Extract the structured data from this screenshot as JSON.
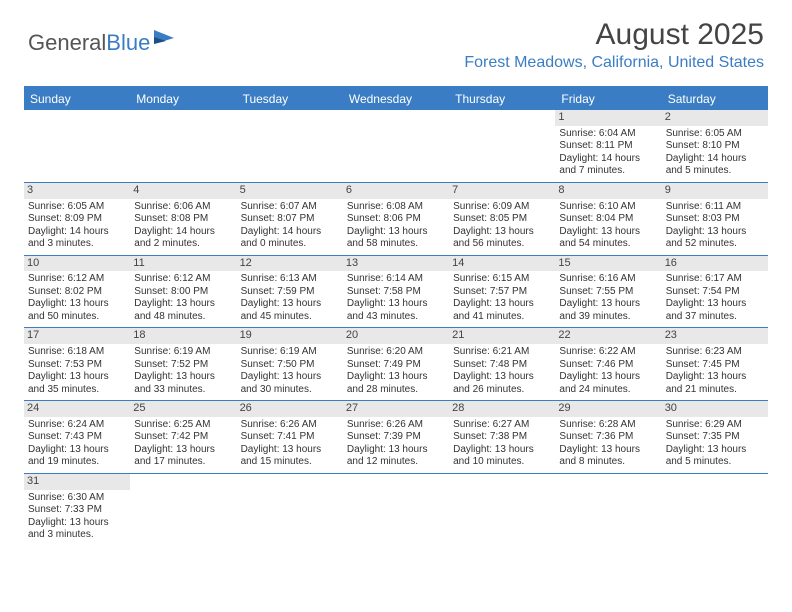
{
  "logo": {
    "text1": "General",
    "text2": "Blue"
  },
  "title": "August 2025",
  "location": "Forest Meadows, California, United States",
  "colors": {
    "accent": "#3b7dc4",
    "headerRow": "#e8e8e8"
  },
  "dayNames": [
    "Sunday",
    "Monday",
    "Tuesday",
    "Wednesday",
    "Thursday",
    "Friday",
    "Saturday"
  ],
  "weeks": [
    [
      {
        "empty": true
      },
      {
        "empty": true
      },
      {
        "empty": true
      },
      {
        "empty": true
      },
      {
        "empty": true
      },
      {
        "date": "1",
        "sunrise": "Sunrise: 6:04 AM",
        "sunset": "Sunset: 8:11 PM",
        "daylight": "Daylight: 14 hours and 7 minutes."
      },
      {
        "date": "2",
        "sunrise": "Sunrise: 6:05 AM",
        "sunset": "Sunset: 8:10 PM",
        "daylight": "Daylight: 14 hours and 5 minutes."
      }
    ],
    [
      {
        "date": "3",
        "sunrise": "Sunrise: 6:05 AM",
        "sunset": "Sunset: 8:09 PM",
        "daylight": "Daylight: 14 hours and 3 minutes."
      },
      {
        "date": "4",
        "sunrise": "Sunrise: 6:06 AM",
        "sunset": "Sunset: 8:08 PM",
        "daylight": "Daylight: 14 hours and 2 minutes."
      },
      {
        "date": "5",
        "sunrise": "Sunrise: 6:07 AM",
        "sunset": "Sunset: 8:07 PM",
        "daylight": "Daylight: 14 hours and 0 minutes."
      },
      {
        "date": "6",
        "sunrise": "Sunrise: 6:08 AM",
        "sunset": "Sunset: 8:06 PM",
        "daylight": "Daylight: 13 hours and 58 minutes."
      },
      {
        "date": "7",
        "sunrise": "Sunrise: 6:09 AM",
        "sunset": "Sunset: 8:05 PM",
        "daylight": "Daylight: 13 hours and 56 minutes."
      },
      {
        "date": "8",
        "sunrise": "Sunrise: 6:10 AM",
        "sunset": "Sunset: 8:04 PM",
        "daylight": "Daylight: 13 hours and 54 minutes."
      },
      {
        "date": "9",
        "sunrise": "Sunrise: 6:11 AM",
        "sunset": "Sunset: 8:03 PM",
        "daylight": "Daylight: 13 hours and 52 minutes."
      }
    ],
    [
      {
        "date": "10",
        "sunrise": "Sunrise: 6:12 AM",
        "sunset": "Sunset: 8:02 PM",
        "daylight": "Daylight: 13 hours and 50 minutes."
      },
      {
        "date": "11",
        "sunrise": "Sunrise: 6:12 AM",
        "sunset": "Sunset: 8:00 PM",
        "daylight": "Daylight: 13 hours and 48 minutes."
      },
      {
        "date": "12",
        "sunrise": "Sunrise: 6:13 AM",
        "sunset": "Sunset: 7:59 PM",
        "daylight": "Daylight: 13 hours and 45 minutes."
      },
      {
        "date": "13",
        "sunrise": "Sunrise: 6:14 AM",
        "sunset": "Sunset: 7:58 PM",
        "daylight": "Daylight: 13 hours and 43 minutes."
      },
      {
        "date": "14",
        "sunrise": "Sunrise: 6:15 AM",
        "sunset": "Sunset: 7:57 PM",
        "daylight": "Daylight: 13 hours and 41 minutes."
      },
      {
        "date": "15",
        "sunrise": "Sunrise: 6:16 AM",
        "sunset": "Sunset: 7:55 PM",
        "daylight": "Daylight: 13 hours and 39 minutes."
      },
      {
        "date": "16",
        "sunrise": "Sunrise: 6:17 AM",
        "sunset": "Sunset: 7:54 PM",
        "daylight": "Daylight: 13 hours and 37 minutes."
      }
    ],
    [
      {
        "date": "17",
        "sunrise": "Sunrise: 6:18 AM",
        "sunset": "Sunset: 7:53 PM",
        "daylight": "Daylight: 13 hours and 35 minutes."
      },
      {
        "date": "18",
        "sunrise": "Sunrise: 6:19 AM",
        "sunset": "Sunset: 7:52 PM",
        "daylight": "Daylight: 13 hours and 33 minutes."
      },
      {
        "date": "19",
        "sunrise": "Sunrise: 6:19 AM",
        "sunset": "Sunset: 7:50 PM",
        "daylight": "Daylight: 13 hours and 30 minutes."
      },
      {
        "date": "20",
        "sunrise": "Sunrise: 6:20 AM",
        "sunset": "Sunset: 7:49 PM",
        "daylight": "Daylight: 13 hours and 28 minutes."
      },
      {
        "date": "21",
        "sunrise": "Sunrise: 6:21 AM",
        "sunset": "Sunset: 7:48 PM",
        "daylight": "Daylight: 13 hours and 26 minutes."
      },
      {
        "date": "22",
        "sunrise": "Sunrise: 6:22 AM",
        "sunset": "Sunset: 7:46 PM",
        "daylight": "Daylight: 13 hours and 24 minutes."
      },
      {
        "date": "23",
        "sunrise": "Sunrise: 6:23 AM",
        "sunset": "Sunset: 7:45 PM",
        "daylight": "Daylight: 13 hours and 21 minutes."
      }
    ],
    [
      {
        "date": "24",
        "sunrise": "Sunrise: 6:24 AM",
        "sunset": "Sunset: 7:43 PM",
        "daylight": "Daylight: 13 hours and 19 minutes."
      },
      {
        "date": "25",
        "sunrise": "Sunrise: 6:25 AM",
        "sunset": "Sunset: 7:42 PM",
        "daylight": "Daylight: 13 hours and 17 minutes."
      },
      {
        "date": "26",
        "sunrise": "Sunrise: 6:26 AM",
        "sunset": "Sunset: 7:41 PM",
        "daylight": "Daylight: 13 hours and 15 minutes."
      },
      {
        "date": "27",
        "sunrise": "Sunrise: 6:26 AM",
        "sunset": "Sunset: 7:39 PM",
        "daylight": "Daylight: 13 hours and 12 minutes."
      },
      {
        "date": "28",
        "sunrise": "Sunrise: 6:27 AM",
        "sunset": "Sunset: 7:38 PM",
        "daylight": "Daylight: 13 hours and 10 minutes."
      },
      {
        "date": "29",
        "sunrise": "Sunrise: 6:28 AM",
        "sunset": "Sunset: 7:36 PM",
        "daylight": "Daylight: 13 hours and 8 minutes."
      },
      {
        "date": "30",
        "sunrise": "Sunrise: 6:29 AM",
        "sunset": "Sunset: 7:35 PM",
        "daylight": "Daylight: 13 hours and 5 minutes."
      }
    ],
    [
      {
        "date": "31",
        "sunrise": "Sunrise: 6:30 AM",
        "sunset": "Sunset: 7:33 PM",
        "daylight": "Daylight: 13 hours and 3 minutes."
      },
      {
        "empty": true
      },
      {
        "empty": true
      },
      {
        "empty": true
      },
      {
        "empty": true
      },
      {
        "empty": true
      },
      {
        "empty": true
      }
    ]
  ]
}
